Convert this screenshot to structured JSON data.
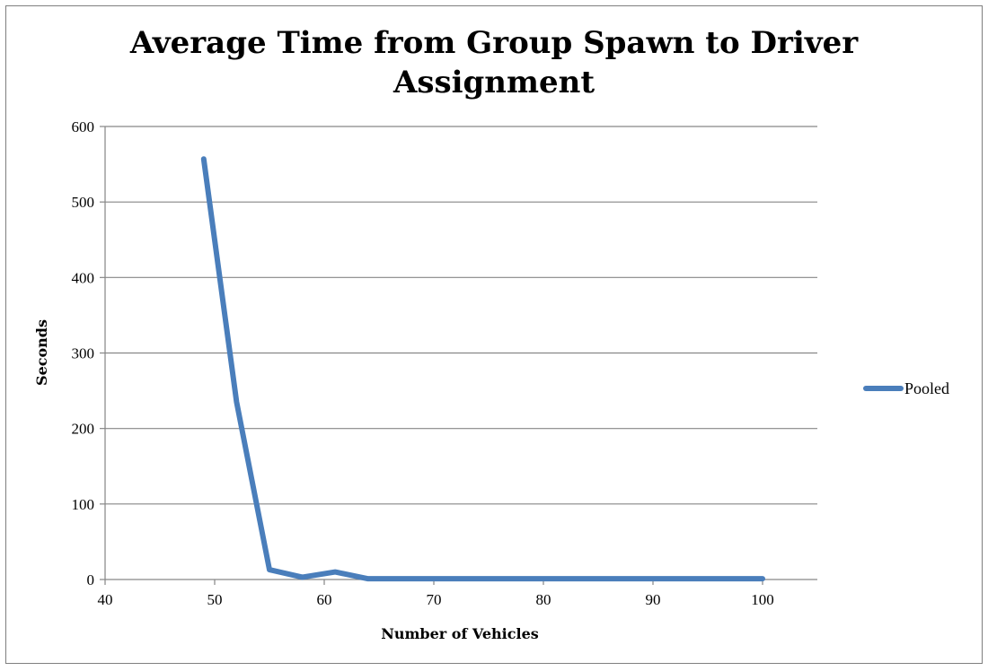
{
  "chart_data": {
    "type": "line",
    "title_lines": [
      "Average Time from Group Spawn to Driver",
      "Assignment"
    ],
    "xlabel": "Number of Vehicles",
    "ylabel": "Seconds",
    "xlim": [
      40,
      105
    ],
    "ylim": [
      0,
      600
    ],
    "xticks": [
      40,
      50,
      60,
      70,
      80,
      90,
      100
    ],
    "yticks": [
      0,
      100,
      200,
      300,
      400,
      500,
      600
    ],
    "grid": "horizontal",
    "legend_position": "right",
    "series": [
      {
        "name": "Pooled",
        "color": "#4a7ebb",
        "x": [
          49,
          52,
          55,
          58,
          61,
          64,
          67,
          70,
          73,
          76,
          79,
          82,
          85,
          88,
          91,
          94,
          97,
          100
        ],
        "y": [
          557,
          235,
          13,
          3,
          10,
          1,
          1,
          1,
          1,
          1,
          1,
          1,
          1,
          1,
          1,
          1,
          1,
          1
        ]
      }
    ]
  }
}
